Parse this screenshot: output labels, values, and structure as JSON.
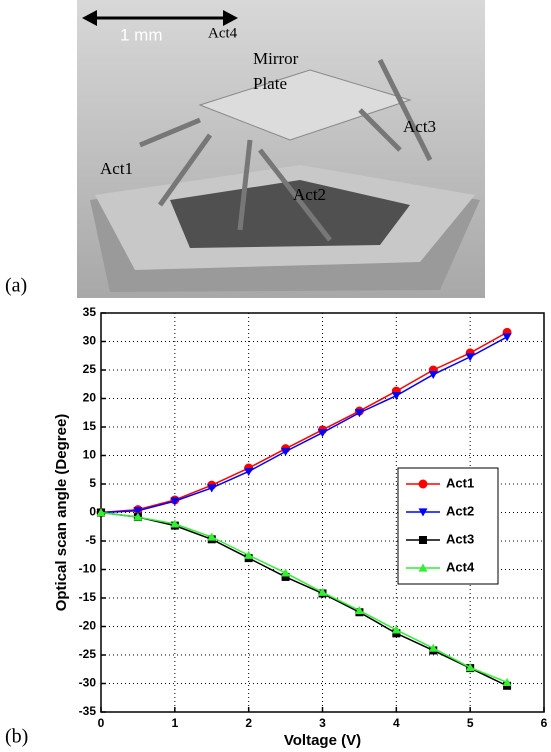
{
  "figure": {
    "panel_a": "(a)",
    "panel_b": "(b)",
    "scale_bar": "1 mm",
    "labels": {
      "act4": "Act4",
      "mirror": "Mirror",
      "plate": "Plate",
      "act3": "Act3",
      "act1": "Act1",
      "act2": "Act2"
    }
  },
  "chart_data": {
    "type": "line",
    "x_label": "Voltage (V)",
    "y_label": "Optical scan angle (Degree)",
    "x": [
      0,
      0.5,
      1,
      1.5,
      2,
      2.5,
      3,
      3.5,
      4,
      4.5,
      5,
      5.5
    ],
    "series": [
      {
        "name": "Act1",
        "color": "#ff0000",
        "marker": "circle",
        "values": [
          0,
          0.5,
          2.2,
          4.8,
          7.8,
          11.2,
          14.5,
          17.8,
          21.3,
          25,
          28,
          31.6
        ]
      },
      {
        "name": "Act2",
        "color": "#0000ff",
        "marker": "triangle-down",
        "values": [
          0,
          0.3,
          2.0,
          4.3,
          7.2,
          10.7,
          14.0,
          17.5,
          20.5,
          24.2,
          27.3,
          30.8
        ]
      },
      {
        "name": "Act3",
        "color": "#000000",
        "marker": "square",
        "values": [
          0,
          -0.8,
          -2.3,
          -4.7,
          -8,
          -11.3,
          -14.2,
          -17.5,
          -21.2,
          -24.2,
          -27.3,
          -30.4
        ]
      },
      {
        "name": "Act4",
        "color": "#33ee33",
        "marker": "triangle-up",
        "values": [
          0,
          -0.8,
          -2.0,
          -4.3,
          -7.5,
          -10.6,
          -14,
          -17.2,
          -20.6,
          -23.8,
          -27.2,
          -29.8
        ]
      }
    ],
    "xlim": [
      0,
      6
    ],
    "xticks": [
      0,
      1,
      2,
      3,
      4,
      5,
      6
    ],
    "ylim": [
      -35,
      35
    ],
    "yticks": [
      -35,
      -30,
      -25,
      -20,
      -15,
      -10,
      -5,
      0,
      5,
      10,
      15,
      20,
      25,
      30,
      35
    ],
    "grid": true,
    "legend": "right"
  }
}
